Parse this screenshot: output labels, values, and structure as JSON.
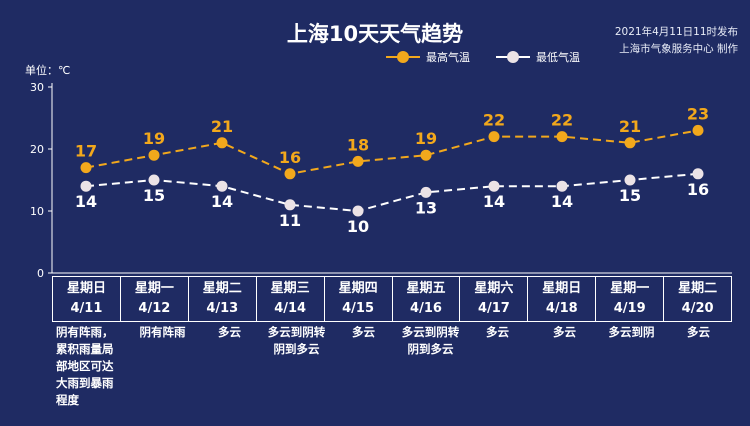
{
  "title": "上海10天天气趋势",
  "published": "2021年4月11日11时发布",
  "producer": "上海市气象服务中心 制作",
  "unit_label": "单位：℃",
  "colors": {
    "background": "#1f2b63",
    "high": "#f2a81c",
    "low": "#ffffff",
    "low_marker": "#ece3e6",
    "axis": "#ffffff"
  },
  "chart_data": {
    "type": "line",
    "categories": [
      "4/11",
      "4/12",
      "4/13",
      "4/14",
      "4/15",
      "4/16",
      "4/17",
      "4/18",
      "4/19",
      "4/20"
    ],
    "weekdays": [
      "星期日",
      "星期一",
      "星期二",
      "星期三",
      "星期四",
      "星期五",
      "星期六",
      "星期日",
      "星期一",
      "星期二"
    ],
    "series": [
      {
        "name": "最高气温",
        "values": [
          17,
          19,
          21,
          16,
          18,
          19,
          22,
          22,
          21,
          23
        ],
        "color": "#f2a81c",
        "dashed": true
      },
      {
        "name": "最低气温",
        "values": [
          14,
          15,
          14,
          11,
          10,
          13,
          14,
          14,
          15,
          16
        ],
        "color": "#ffffff",
        "dashed": true
      }
    ],
    "ylim": [
      0,
      30
    ],
    "yticks": [
      0,
      10,
      20,
      30
    ],
    "grid": false,
    "legend": "top-center"
  },
  "descriptions": [
    "阴有阵雨，累积雨量局部地区可达大雨到暴雨程度",
    "阴有阵雨",
    "多云",
    "多云到阴转阴到多云",
    "多云",
    "多云到阴转阴到多云",
    "多云",
    "多云",
    "多云到阴",
    "多云"
  ]
}
